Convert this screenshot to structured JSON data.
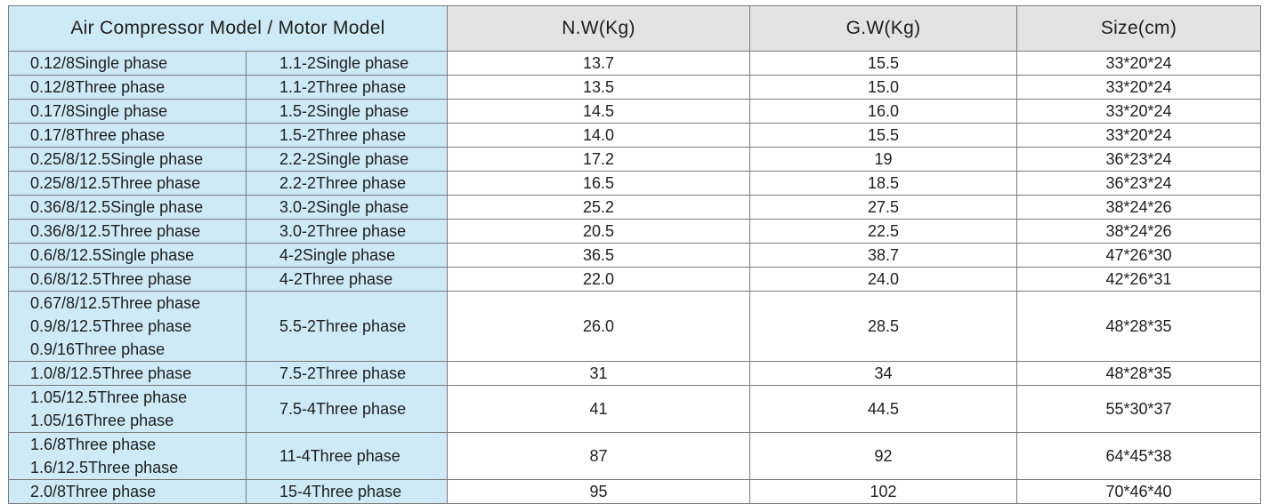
{
  "headers": {
    "model": "Air Compressor Model / Motor Model",
    "nw": "N.W(Kg)",
    "gw": "G.W(Kg)",
    "size": "Size(cm)"
  },
  "rows": [
    {
      "compressor": [
        "0.12/8Single phase"
      ],
      "motor": "1.1-2Single phase",
      "nw": "13.7",
      "gw": "15.5",
      "size": "33*20*24"
    },
    {
      "compressor": [
        "0.12/8Three phase"
      ],
      "motor": "1.1-2Three phase",
      "nw": "13.5",
      "gw": "15.0",
      "size": "33*20*24"
    },
    {
      "compressor": [
        "0.17/8Single phase"
      ],
      "motor": "1.5-2Single phase",
      "nw": "14.5",
      "gw": "16.0",
      "size": "33*20*24"
    },
    {
      "compressor": [
        "0.17/8Three phase"
      ],
      "motor": "1.5-2Three phase",
      "nw": "14.0",
      "gw": "15.5",
      "size": "33*20*24"
    },
    {
      "compressor": [
        "0.25/8/12.5Single phase"
      ],
      "motor": "2.2-2Single phase",
      "nw": "17.2",
      "gw": "19",
      "size": "36*23*24"
    },
    {
      "compressor": [
        "0.25/8/12.5Three phase"
      ],
      "motor": "2.2-2Three phase",
      "nw": "16.5",
      "gw": "18.5",
      "size": "36*23*24"
    },
    {
      "compressor": [
        "0.36/8/12.5Single phase"
      ],
      "motor": "3.0-2Single phase",
      "nw": "25.2",
      "gw": "27.5",
      "size": "38*24*26"
    },
    {
      "compressor": [
        "0.36/8/12.5Three phase"
      ],
      "motor": "3.0-2Three phase",
      "nw": "20.5",
      "gw": "22.5",
      "size": "38*24*26"
    },
    {
      "compressor": [
        "0.6/8/12.5Single phase"
      ],
      "motor": "4-2Single phase",
      "nw": "36.5",
      "gw": "38.7",
      "size": "47*26*30"
    },
    {
      "compressor": [
        "0.6/8/12.5Three phase"
      ],
      "motor": "4-2Three phase",
      "nw": "22.0",
      "gw": "24.0",
      "size": "42*26*31"
    },
    {
      "compressor": [
        "0.67/8/12.5Three phase",
        "0.9/8/12.5Three phase",
        "0.9/16Three phase"
      ],
      "motor": "5.5-2Three phase",
      "nw": "26.0",
      "gw": "28.5",
      "size": "48*28*35"
    },
    {
      "compressor": [
        "1.0/8/12.5Three phase"
      ],
      "motor": "7.5-2Three phase",
      "nw": "31",
      "gw": "34",
      "size": "48*28*35"
    },
    {
      "compressor": [
        "1.05/12.5Three phase",
        "1.05/16Three phase"
      ],
      "motor": "7.5-4Three phase",
      "nw": "41",
      "gw": "44.5",
      "size": "55*30*37"
    },
    {
      "compressor": [
        "1.6/8Three phase",
        "1.6/12.5Three phase"
      ],
      "motor": "11-4Three phase",
      "nw": "87",
      "gw": "92",
      "size": "64*45*38"
    },
    {
      "compressor": [
        "2.0/8Three phase"
      ],
      "motor": "15-4Three phase",
      "nw": "95",
      "gw": "102",
      "size": "70*46*40"
    }
  ],
  "colors": {
    "model_bg": "#cdeaf6",
    "header_bg": "#e3e3e3",
    "border": "#7a7a7a"
  }
}
